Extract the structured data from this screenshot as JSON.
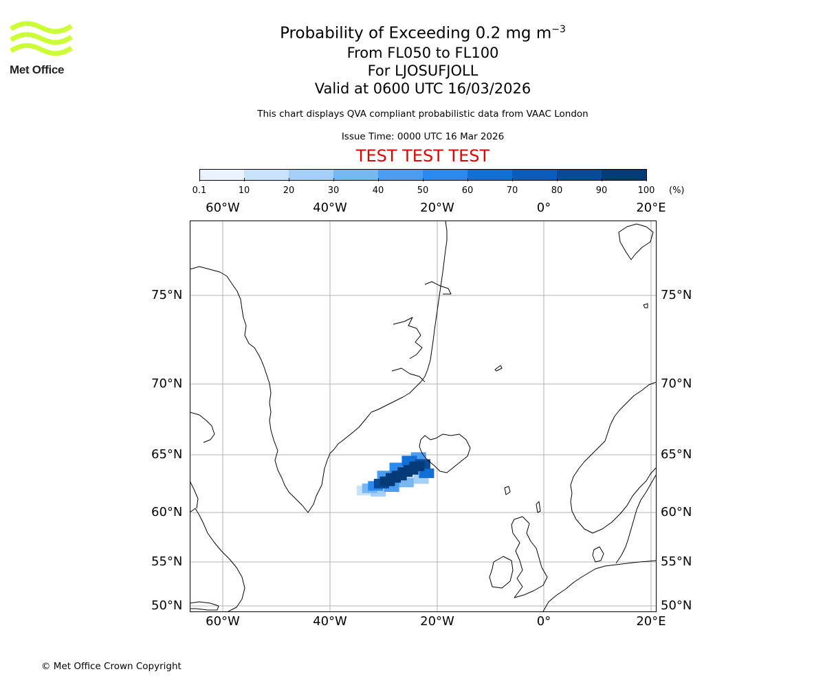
{
  "brand": {
    "name": "Met Office",
    "logo_color": "#ccff33",
    "copyright": "© Met Office Crown Copyright"
  },
  "titles": {
    "line1_main": "Probability of Exceeding 0.2 mg m",
    "line1_exp": "−3",
    "line2": "From FL050 to FL100",
    "line3": "For LJOSUFJOLL",
    "line4": "Valid at 0600 UTC 16/03/2026",
    "disclaimer": "This chart displays QVA compliant probabilistic data from VAAC London",
    "issue_time": "Issue Time: 0000 UTC 16 Mar 2026",
    "test_banner": "TEST TEST TEST",
    "test_color": "#e00000"
  },
  "colorbar": {
    "unit": "(%)",
    "ticks": [
      "0.1",
      "10",
      "20",
      "30",
      "40",
      "50",
      "60",
      "70",
      "80",
      "90",
      "100"
    ],
    "colors": [
      "#eaf4fe",
      "#c8e2fa",
      "#a4cff6",
      "#78b8f2",
      "#4a9df0",
      "#2a8af0",
      "#1070d8",
      "#0a5cbc",
      "#084a98",
      "#053a78",
      "#02294f"
    ]
  },
  "map": {
    "lon_labels": [
      "60°W",
      "40°W",
      "20°W",
      "0°",
      "20°E"
    ],
    "lat_labels": [
      "75°N",
      "70°N",
      "65°N",
      "60°N",
      "55°N",
      "50°N"
    ]
  },
  "chart_data": {
    "type": "heatmap",
    "title": "Probability of Exceeding 0.2 mg m−3",
    "layer": "From FL050 to FL100",
    "source": "LJOSUFJOLL",
    "valid": "0600 UTC 16/03/2026",
    "units": "%",
    "extent": {
      "lon": [
        -66,
        21
      ],
      "lat": [
        49.5,
        80
      ]
    },
    "gridlines_lon": [
      -60,
      -40,
      -20,
      0,
      20
    ],
    "gridlines_lat": [
      50,
      55,
      60,
      65,
      70,
      75
    ],
    "plume_cells": [
      {
        "lon": -32.6,
        "lat": 62.1,
        "p": 35
      },
      {
        "lon": -31.5,
        "lat": 62.3,
        "p": 55
      },
      {
        "lon": -30.4,
        "lat": 62.5,
        "p": 85
      },
      {
        "lon": -29.3,
        "lat": 62.7,
        "p": 95
      },
      {
        "lon": -28.2,
        "lat": 63.0,
        "p": 95
      },
      {
        "lon": -27.1,
        "lat": 63.2,
        "p": 95
      },
      {
        "lon": -26.0,
        "lat": 63.5,
        "p": 95
      },
      {
        "lon": -24.9,
        "lat": 63.7,
        "p": 95
      },
      {
        "lon": -23.8,
        "lat": 64.0,
        "p": 95
      },
      {
        "lon": -22.7,
        "lat": 64.2,
        "p": 85
      },
      {
        "lon": -22.0,
        "lat": 63.4,
        "p": 65
      },
      {
        "lon": -29.8,
        "lat": 63.2,
        "p": 45
      },
      {
        "lon": -27.5,
        "lat": 63.9,
        "p": 55
      },
      {
        "lon": -25.2,
        "lat": 64.5,
        "p": 65
      },
      {
        "lon": -23.5,
        "lat": 64.8,
        "p": 45
      },
      {
        "lon": -31.0,
        "lat": 61.8,
        "p": 25
      },
      {
        "lon": -28.5,
        "lat": 62.2,
        "p": 45
      },
      {
        "lon": -25.8,
        "lat": 62.6,
        "p": 35
      },
      {
        "lon": -23.0,
        "lat": 62.9,
        "p": 25
      },
      {
        "lon": -33.6,
        "lat": 61.9,
        "p": 10
      }
    ]
  }
}
